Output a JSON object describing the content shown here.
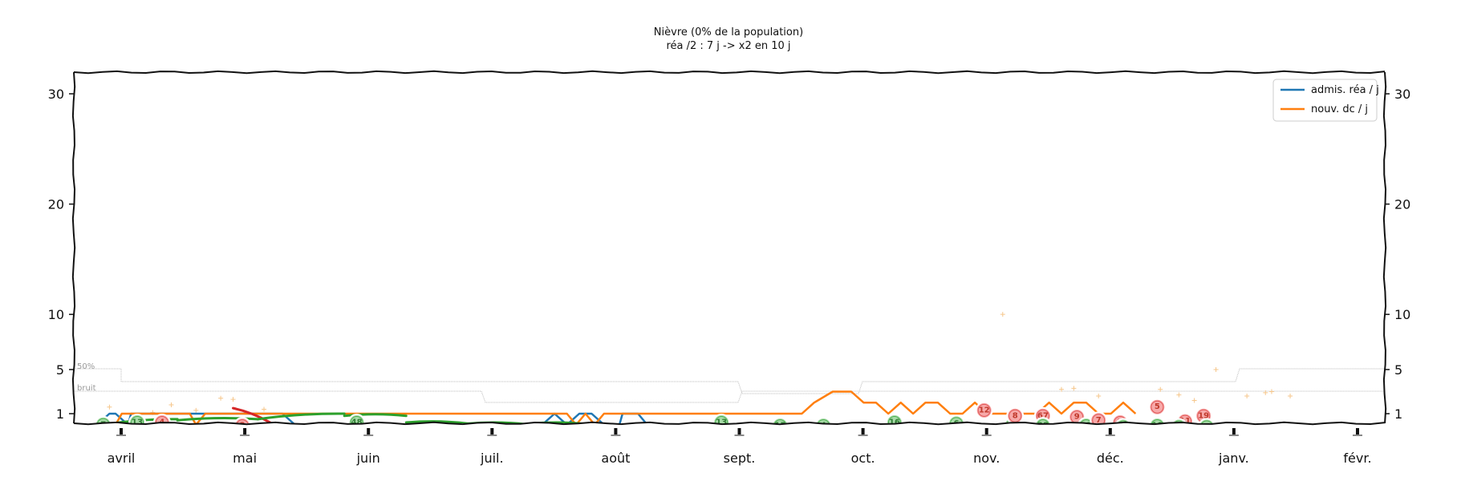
{
  "chart_data": {
    "type": "line",
    "title": "Nièvre (0% de la population)",
    "subtitle": "réa /2 : 7 j -> x2 en 10 j",
    "yticks": [
      1,
      5,
      10,
      20,
      30
    ],
    "ylim": [
      -0.3,
      33
    ],
    "x_months": [
      "avril",
      "mai",
      "juin",
      "juil.",
      "août",
      "sept.",
      "oct.",
      "nov.",
      "déc.",
      "janv.",
      "févr."
    ],
    "legend_position": "top-right",
    "series": [
      {
        "name": "admis. réa / j",
        "color": "#1f77b4",
        "x": [
          0.0,
          0.2,
          0.3,
          0.5,
          0.55,
          0.6,
          3.0,
          3.2,
          7.2,
          7.4,
          7.6,
          7.8,
          8.0,
          8.2,
          8.45,
          8.5,
          8.6,
          8.75,
          8.9
        ],
        "y": [
          0,
          1,
          1,
          0,
          1,
          1,
          1,
          0,
          0,
          1,
          0,
          1,
          1,
          0,
          0,
          1,
          1,
          1,
          0
        ]
      },
      {
        "name": "nouv. dc / j",
        "color": "#ff7f0e",
        "x": [
          0.3,
          0.4,
          0.5,
          0.6,
          0.7,
          0.8,
          1.0,
          1.2,
          1.4,
          1.5,
          1.6,
          1.75,
          1.9,
          2.1,
          2.3,
          7.4,
          7.6,
          7.75,
          7.9,
          8.05,
          8.2,
          8.35,
          8.4,
          8.55,
          8.7,
          8.85,
          9.0,
          9.15,
          9.3,
          9.45,
          9.6,
          9.75,
          9.9,
          10.05,
          10.2,
          10.35,
          10.5,
          10.65,
          10.8,
          10.95,
          11.1,
          11.25,
          11.4,
          11.6,
          11.9,
          12.2,
          12.4,
          12.6,
          12.8,
          13.0,
          13.2,
          13.4,
          13.6,
          13.8,
          14.0,
          14.2,
          14.4,
          14.6,
          14.8,
          15.0,
          15.2,
          15.4,
          15.6,
          15.8,
          16.0,
          16.2,
          16.4,
          16.6,
          16.8
        ],
        "y": [
          0,
          1,
          1,
          1,
          1,
          1,
          1,
          1,
          1,
          1,
          0,
          1,
          1,
          1,
          1,
          1,
          1,
          0,
          1,
          0,
          1,
          1,
          1,
          1,
          1,
          1,
          1,
          1,
          1,
          1,
          1,
          1,
          1,
          1,
          1,
          1,
          1,
          1,
          1,
          1,
          1,
          1,
          1,
          2,
          3,
          3,
          2,
          2,
          1,
          2,
          1,
          2,
          2,
          1,
          1,
          2,
          1,
          1,
          1,
          1,
          1,
          2,
          1,
          2,
          2,
          1,
          1,
          2,
          1
        ]
      }
    ],
    "trend_segments": [
      {
        "kind": "hausse",
        "color": "#d62728",
        "x0": 2.2,
        "x1": 2.8,
        "y0": 1.5,
        "y1": 0.2
      },
      {
        "kind": "baisse",
        "color": "#2ca02c",
        "x0": 0.1,
        "x1": 1.3,
        "y0": 0,
        "y1": 0.5
      },
      {
        "kind": "baisse",
        "color": "#2ca02c",
        "x0": 1.3,
        "x1": 2.6,
        "y0": 0.4,
        "y1": 0.5
      },
      {
        "kind": "baisse",
        "color": "#2ca02c",
        "x0": 2.6,
        "x1": 4.0,
        "y0": 0.5,
        "y1": 1.0
      },
      {
        "kind": "baisse",
        "color": "#2ca02c",
        "x0": 4.0,
        "x1": 5.0,
        "y0": 0.8,
        "y1": 0.8
      },
      {
        "kind": "baisse",
        "color": "#2ca02c",
        "x0": 5.0,
        "x1": 6.0,
        "y0": 0.2,
        "y1": 0.1
      },
      {
        "kind": "baisse",
        "color": "#2ca02c",
        "x0": 6.0,
        "x1": 7.0,
        "y0": 0.1,
        "y1": 0.0
      },
      {
        "kind": "baisse",
        "color": "#2ca02c",
        "x0": 7.0,
        "x1": 8.0,
        "y0": 0.1,
        "y1": 0.0
      }
    ],
    "badges": [
      {
        "label": "7",
        "kind": "baisse",
        "x": 0.1,
        "y": 0
      },
      {
        "label": "13",
        "kind": "baisse",
        "x": 0.65,
        "y": 0.2
      },
      {
        "label": "4",
        "kind": "hausse",
        "x": 1.05,
        "y": 0.2
      },
      {
        "label": "3",
        "kind": "hausse",
        "x": 2.35,
        "y": -0.1
      },
      {
        "label": "48",
        "kind": "baisse",
        "x": 4.2,
        "y": 0.2
      },
      {
        "label": "13",
        "kind": "baisse",
        "x": 10.1,
        "y": 0.2
      },
      {
        "label": "15",
        "kind": "baisse",
        "x": 11.05,
        "y": -0.1
      },
      {
        "label": "4",
        "kind": "baisse",
        "x": 11.75,
        "y": -0.1
      },
      {
        "label": "16",
        "kind": "baisse",
        "x": 12.9,
        "y": 0.2
      },
      {
        "label": "6",
        "kind": "baisse",
        "x": 13.9,
        "y": 0.1
      },
      {
        "label": "12",
        "kind": "hausse",
        "x": 14.35,
        "y": 1.3
      },
      {
        "label": "4",
        "kind": "baisse",
        "x": 14.8,
        "y": -0.1
      },
      {
        "label": "8",
        "kind": "hausse",
        "x": 14.85,
        "y": 0.8
      },
      {
        "label": "67",
        "kind": "hausse",
        "x": 15.3,
        "y": 0.8
      },
      {
        "label": "38",
        "kind": "baisse",
        "x": 15.3,
        "y": -0.1
      },
      {
        "label": "9",
        "kind": "hausse",
        "x": 15.85,
        "y": 0.7
      },
      {
        "label": "13",
        "kind": "baisse",
        "x": 16.0,
        "y": -0.1
      },
      {
        "label": "7",
        "kind": "hausse",
        "x": 16.2,
        "y": 0.4
      },
      {
        "label": "7",
        "kind": "hausse",
        "x": 16.55,
        "y": 0.2
      },
      {
        "label": "10",
        "kind": "baisse",
        "x": 16.6,
        "y": -0.2
      },
      {
        "label": "5",
        "kind": "hausse",
        "x": 17.15,
        "y": 1.6
      },
      {
        "label": "10",
        "kind": "baisse",
        "x": 17.15,
        "y": -0.1
      },
      {
        "label": "11",
        "kind": "hausse",
        "x": 17.6,
        "y": 0.3
      },
      {
        "label": "7",
        "kind": "baisse",
        "x": 17.5,
        "y": -0.2
      },
      {
        "label": "19",
        "kind": "hausse",
        "x": 17.9,
        "y": 0.8
      },
      {
        "label": "10",
        "kind": "baisse",
        "x": 17.95,
        "y": -0.2
      }
    ],
    "references": [
      {
        "label": "50%",
        "color": "#bbbbbb"
      },
      {
        "label": "bruit",
        "color": "#bbbbbb"
      }
    ],
    "grid": false
  }
}
